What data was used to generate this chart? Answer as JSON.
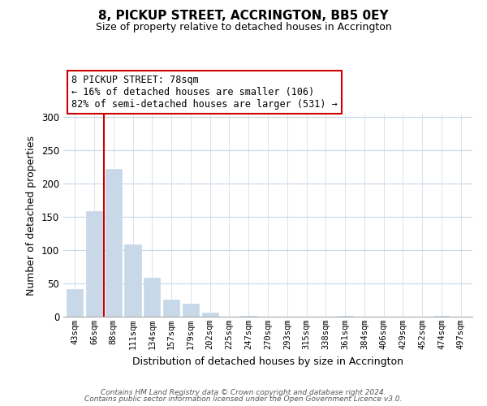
{
  "title": "8, PICKUP STREET, ACCRINGTON, BB5 0EY",
  "subtitle": "Size of property relative to detached houses in Accrington",
  "xlabel": "Distribution of detached houses by size in Accrington",
  "ylabel": "Number of detached properties",
  "categories": [
    "43sqm",
    "66sqm",
    "88sqm",
    "111sqm",
    "134sqm",
    "157sqm",
    "179sqm",
    "202sqm",
    "225sqm",
    "247sqm",
    "270sqm",
    "293sqm",
    "315sqm",
    "338sqm",
    "361sqm",
    "384sqm",
    "406sqm",
    "429sqm",
    "452sqm",
    "474sqm",
    "497sqm"
  ],
  "values": [
    42,
    158,
    222,
    109,
    58,
    26,
    20,
    6,
    0,
    1,
    0,
    0,
    0,
    0,
    1,
    0,
    0,
    0,
    0,
    1,
    0
  ],
  "bar_color": "#c8d8e8",
  "bar_edgecolor": "#c8d8e8",
  "vline_x_index": 1.5,
  "vline_color": "#cc0000",
  "annotation_line1": "8 PICKUP STREET: 78sqm",
  "annotation_line2": "← 16% of detached houses are smaller (106)",
  "annotation_line3": "82% of semi-detached houses are larger (531) →",
  "annotation_box_facecolor": "#ffffff",
  "annotation_box_edgecolor": "#cc0000",
  "ylim": [
    0,
    305
  ],
  "yticks": [
    0,
    50,
    100,
    150,
    200,
    250,
    300
  ],
  "footer1": "Contains HM Land Registry data © Crown copyright and database right 2024.",
  "footer2": "Contains public sector information licensed under the Open Government Licence v3.0.",
  "background_color": "#ffffff",
  "grid_color": "#c8d8e8",
  "spine_color": "#aaaaaa",
  "title_fontsize": 11,
  "subtitle_fontsize": 9,
  "ylabel_fontsize": 9,
  "xlabel_fontsize": 9,
  "tick_fontsize": 7.5,
  "annotation_fontsize": 8.5,
  "footer_fontsize": 6.5
}
